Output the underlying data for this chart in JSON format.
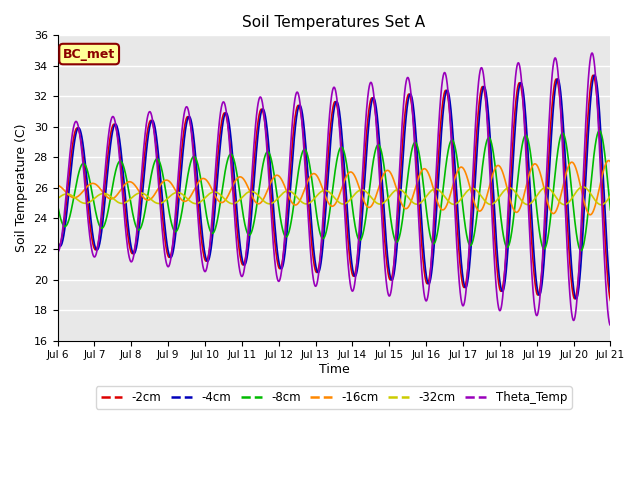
{
  "title": "Soil Temperatures Set A",
  "xlabel": "Time",
  "ylabel": "Soil Temperature (C)",
  "ylim": [
    16,
    36
  ],
  "xlim_days": [
    6,
    21
  ],
  "annotation_text": "BC_met",
  "plot_bg_color": "#e8e8e8",
  "fig_bg_color": "#ffffff",
  "grid_color": "#ffffff",
  "series_order": [
    "-2cm",
    "-4cm",
    "-8cm",
    "-16cm",
    "-32cm",
    "Theta_Temp"
  ],
  "series": {
    "-2cm": {
      "color": "#dd0000",
      "lw": 1.2
    },
    "-4cm": {
      "color": "#0000bb",
      "lw": 1.2
    },
    "-8cm": {
      "color": "#00bb00",
      "lw": 1.2
    },
    "-16cm": {
      "color": "#ff8800",
      "lw": 1.2
    },
    "-32cm": {
      "color": "#cccc00",
      "lw": 1.2
    },
    "Theta_Temp": {
      "color": "#9900bb",
      "lw": 1.2
    }
  },
  "xtick_labels": [
    "Jul 6",
    "Jul 7",
    "Jul 8",
    "Jul 9",
    "Jul 10",
    "Jul 11",
    "Jul 12",
    "Jul 13",
    "Jul 14",
    "Jul 15",
    "Jul 16",
    "Jul 17",
    "Jul 18",
    "Jul 19",
    "Jul 20",
    "Jul 21"
  ],
  "xtick_positions": [
    6,
    7,
    8,
    9,
    10,
    11,
    12,
    13,
    14,
    15,
    16,
    17,
    18,
    19,
    20,
    21
  ]
}
